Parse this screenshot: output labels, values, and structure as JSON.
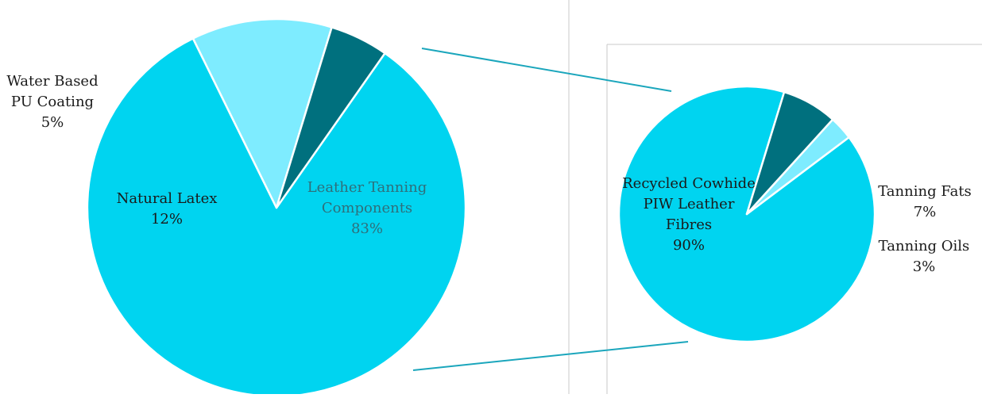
{
  "chart_data": [
    {
      "type": "pie",
      "title": "",
      "series": [
        {
          "slices": [
            {
              "label_lines": [
                "Leather Tanning",
                "Components"
              ],
              "value": 83,
              "value_label": "83%",
              "color": "#00D4F0",
              "label_color": "#2F6F7A"
            },
            {
              "label_lines": [
                "Natural Latex"
              ],
              "value": 12,
              "value_label": "12%",
              "color": "#7EECFF",
              "label_color": "#1A1A1A"
            },
            {
              "label_lines": [
                "Water Based",
                "PU Coating"
              ],
              "value": 5,
              "value_label": "5%",
              "color": "#00707E",
              "label_color": "#1A1A1A"
            }
          ]
        }
      ]
    },
    {
      "type": "pie",
      "title": "",
      "series": [
        {
          "slices": [
            {
              "label_lines": [
                "Recycled Cowhide",
                "PIW Leather",
                "Fibres"
              ],
              "value": 90,
              "value_label": "90%",
              "color": "#00D4F0",
              "label_color": "#1A1A1A"
            },
            {
              "label_lines": [
                "Tanning Fats"
              ],
              "value": 7,
              "value_label": "7%",
              "color": "#00707E",
              "label_color": "#1A1A1A"
            },
            {
              "label_lines": [
                "Tanning Oils"
              ],
              "value": 3,
              "value_label": "3%",
              "color": "#7EECFF",
              "label_color": "#1A1A1A"
            }
          ]
        }
      ]
    }
  ],
  "connector_color": "#1BA6BC",
  "border_color": "#C8C8C8"
}
